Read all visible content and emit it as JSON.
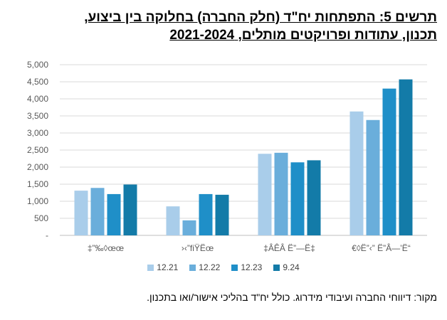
{
  "title": {
    "line1": "תרשים 5: התפתחות יח\"ד (חלק החברה) בחלוקה בין ביצוע,",
    "line2": "תכנון, עתודות ופרויקטים מותלים, 2021-2024"
  },
  "source": "מקור: דיווחי החברה ועיבודי מידרוג. כולל יח\"ד בהליכי אישור/ואו בתכנון.",
  "colors": [
    "#a9cdea",
    "#6aaedb",
    "#1f8fc8",
    "#137ba8"
  ],
  "chart_data": {
    "type": "bar",
    "categories": [
      "‡”‰◊œœ",
      "›‹”ﬁŸËœ",
      "‡ÂÊÂ Ë”—Ë‡",
      "€◊Ë”‹” Ë”Â—’Ë“"
    ],
    "series": [
      {
        "name": "12.21",
        "values": [
          1310,
          850,
          2390,
          3630
        ]
      },
      {
        "name": "12.22",
        "values": [
          1390,
          440,
          2420,
          3380
        ]
      },
      {
        "name": "12.23",
        "values": [
          1210,
          1210,
          2140,
          4300
        ]
      },
      {
        "name": "9.24",
        "values": [
          1490,
          1190,
          2200,
          4570
        ]
      }
    ],
    "yticks": [
      "-",
      "500",
      "1,000",
      "1,500",
      "2,000",
      "2,500",
      "3,000",
      "3,500",
      "4,000",
      "4,500",
      "5,000"
    ],
    "ylim": [
      0,
      5000
    ],
    "grid": true,
    "legend": "bottom"
  }
}
